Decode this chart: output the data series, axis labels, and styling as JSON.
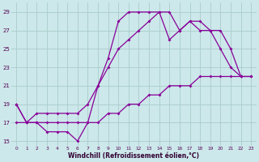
{
  "xlabel": "Windchill (Refroidissement éolien,°C)",
  "bg_color": "#cce8ea",
  "grid_color": "#aacccc",
  "line_color": "#880099",
  "xlim": [
    -0.5,
    23.5
  ],
  "ylim": [
    14.5,
    30
  ],
  "xticks": [
    0,
    1,
    2,
    3,
    4,
    5,
    6,
    7,
    8,
    9,
    10,
    11,
    12,
    13,
    14,
    15,
    16,
    17,
    18,
    19,
    20,
    21,
    22,
    23
  ],
  "yticks": [
    15,
    17,
    19,
    21,
    23,
    25,
    27,
    29
  ],
  "line_a": {
    "x": [
      0,
      1,
      2,
      3,
      4,
      5,
      6,
      7,
      8,
      9,
      10,
      11,
      12,
      13,
      14,
      15,
      16,
      17,
      18,
      19,
      20,
      21,
      22
    ],
    "y": [
      19,
      17,
      17,
      16,
      16,
      16,
      15,
      17,
      21,
      24,
      28,
      29,
      29,
      29,
      29,
      26,
      27,
      28,
      27,
      27,
      25,
      23,
      22
    ]
  },
  "line_b": {
    "x": [
      0,
      1,
      2,
      3,
      4,
      5,
      6,
      7,
      8,
      9,
      10,
      11,
      12,
      13,
      14,
      15,
      16,
      17,
      18,
      19,
      20,
      21,
      22,
      23
    ],
    "y": [
      19,
      17,
      18,
      18,
      18,
      18,
      18,
      19,
      21,
      23,
      25,
      26,
      27,
      28,
      29,
      29,
      27,
      28,
      28,
      27,
      27,
      25,
      22,
      22
    ]
  },
  "line_c": {
    "x": [
      0,
      1,
      2,
      3,
      4,
      5,
      6,
      7,
      8,
      9,
      10,
      11,
      12,
      13,
      14,
      15,
      16,
      17,
      18,
      19,
      20,
      21,
      22,
      23
    ],
    "y": [
      17,
      17,
      17,
      17,
      17,
      17,
      17,
      17,
      17,
      18,
      18,
      19,
      19,
      20,
      20,
      21,
      21,
      21,
      22,
      22,
      22,
      22,
      22,
      22
    ]
  }
}
